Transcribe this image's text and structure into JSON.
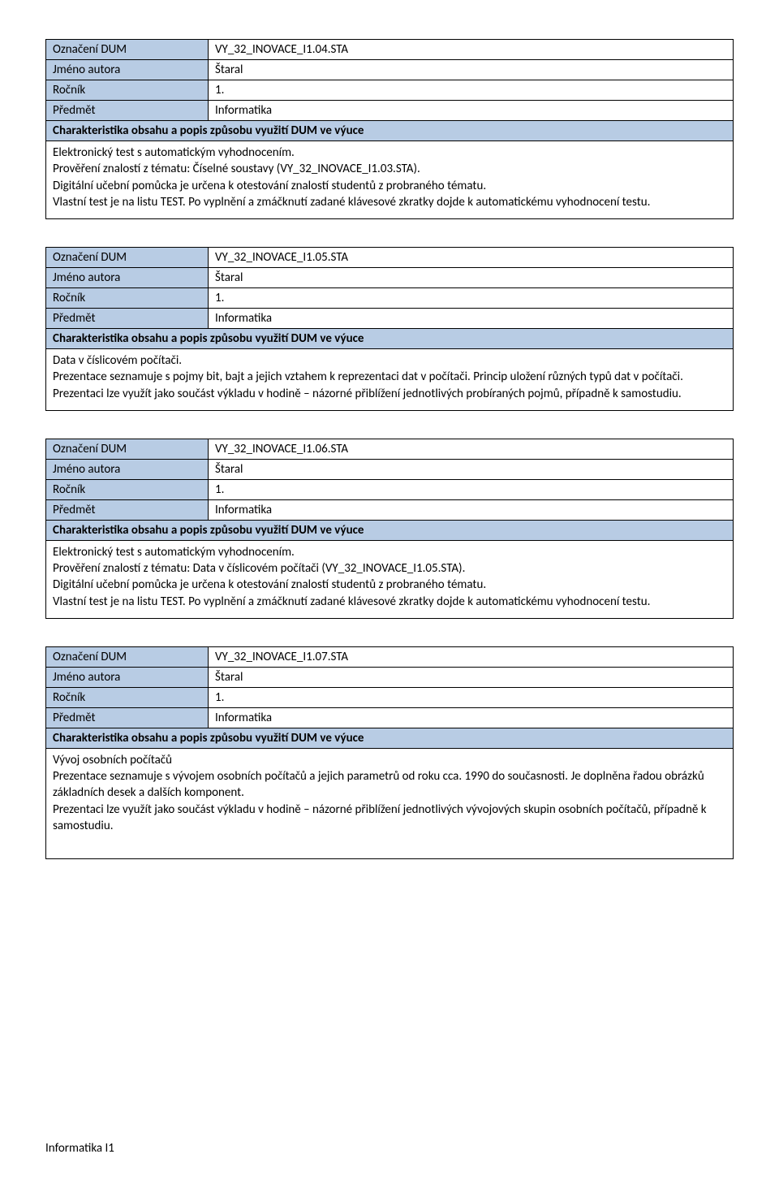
{
  "colors": {
    "header_bg": "#b8cce4",
    "border": "#000000",
    "page_bg": "#ffffff",
    "text": "#000000"
  },
  "labels": {
    "oznaceni": "Označení DUM",
    "jmeno": "Jméno autora",
    "rocnik": "Ročník",
    "predmet": "Předmět",
    "charakt": "Charakteristika obsahu a popis způsobu využití DUM ve výuce"
  },
  "common": {
    "autor": "Štaral",
    "rocnik": "1.",
    "predmet": "Informatika"
  },
  "cards": [
    {
      "oznaceni": "VY_32_INOVACE_I1.04.STA",
      "body": "Elektronický test s automatickým vyhodnocením.\nPrověření znalostí z tématu: Číselné soustavy (VY_32_INOVACE_I1.03.STA).\nDigitální učební pomůcka je určena k otestování znalostí studentů z probraného tématu.\nVlastní test je na listu TEST. Po vyplnění a zmáčknutí zadané klávesové zkratky dojde k automatickému vyhodnocení testu."
    },
    {
      "oznaceni": "VY_32_INOVACE_I1.05.STA",
      "body": "Data v číslicovém počítači.\nPrezentace seznamuje s pojmy bit, bajt a jejich vztahem k reprezentaci dat v počítači.  Princip uložení různých typů dat v počítači.\nPrezentaci lze využít jako součást výkladu v hodině – názorné přiblížení jednotlivých probíraných pojmů, případně k samostudiu."
    },
    {
      "oznaceni": "VY_32_INOVACE_I1.06.STA",
      "body": "Elektronický test s automatickým vyhodnocením.\nPrověření znalostí z tématu: Data v číslicovém počítači (VY_32_INOVACE_I1.05.STA).\nDigitální učební pomůcka je určena k otestování znalostí studentů z probraného tématu.\nVlastní test je na listu TEST. Po vyplnění a zmáčknutí zadané klávesové zkratky dojde k automatickému vyhodnocení testu."
    },
    {
      "oznaceni": "VY_32_INOVACE_I1.07.STA",
      "body": "Vývoj osobních počítačů\nPrezentace seznamuje s vývojem osobních počítačů a jejich parametrů od roku cca. 1990 do současnosti. Je doplněna řadou obrázků základních desek a dalších komponent.\nPrezentaci lze využít jako součást výkladu v hodině – názorné přiblížení jednotlivých vývojových skupin osobních počítačů, případně k samostudiu.\n"
    }
  ],
  "footer": "Informatika I1"
}
